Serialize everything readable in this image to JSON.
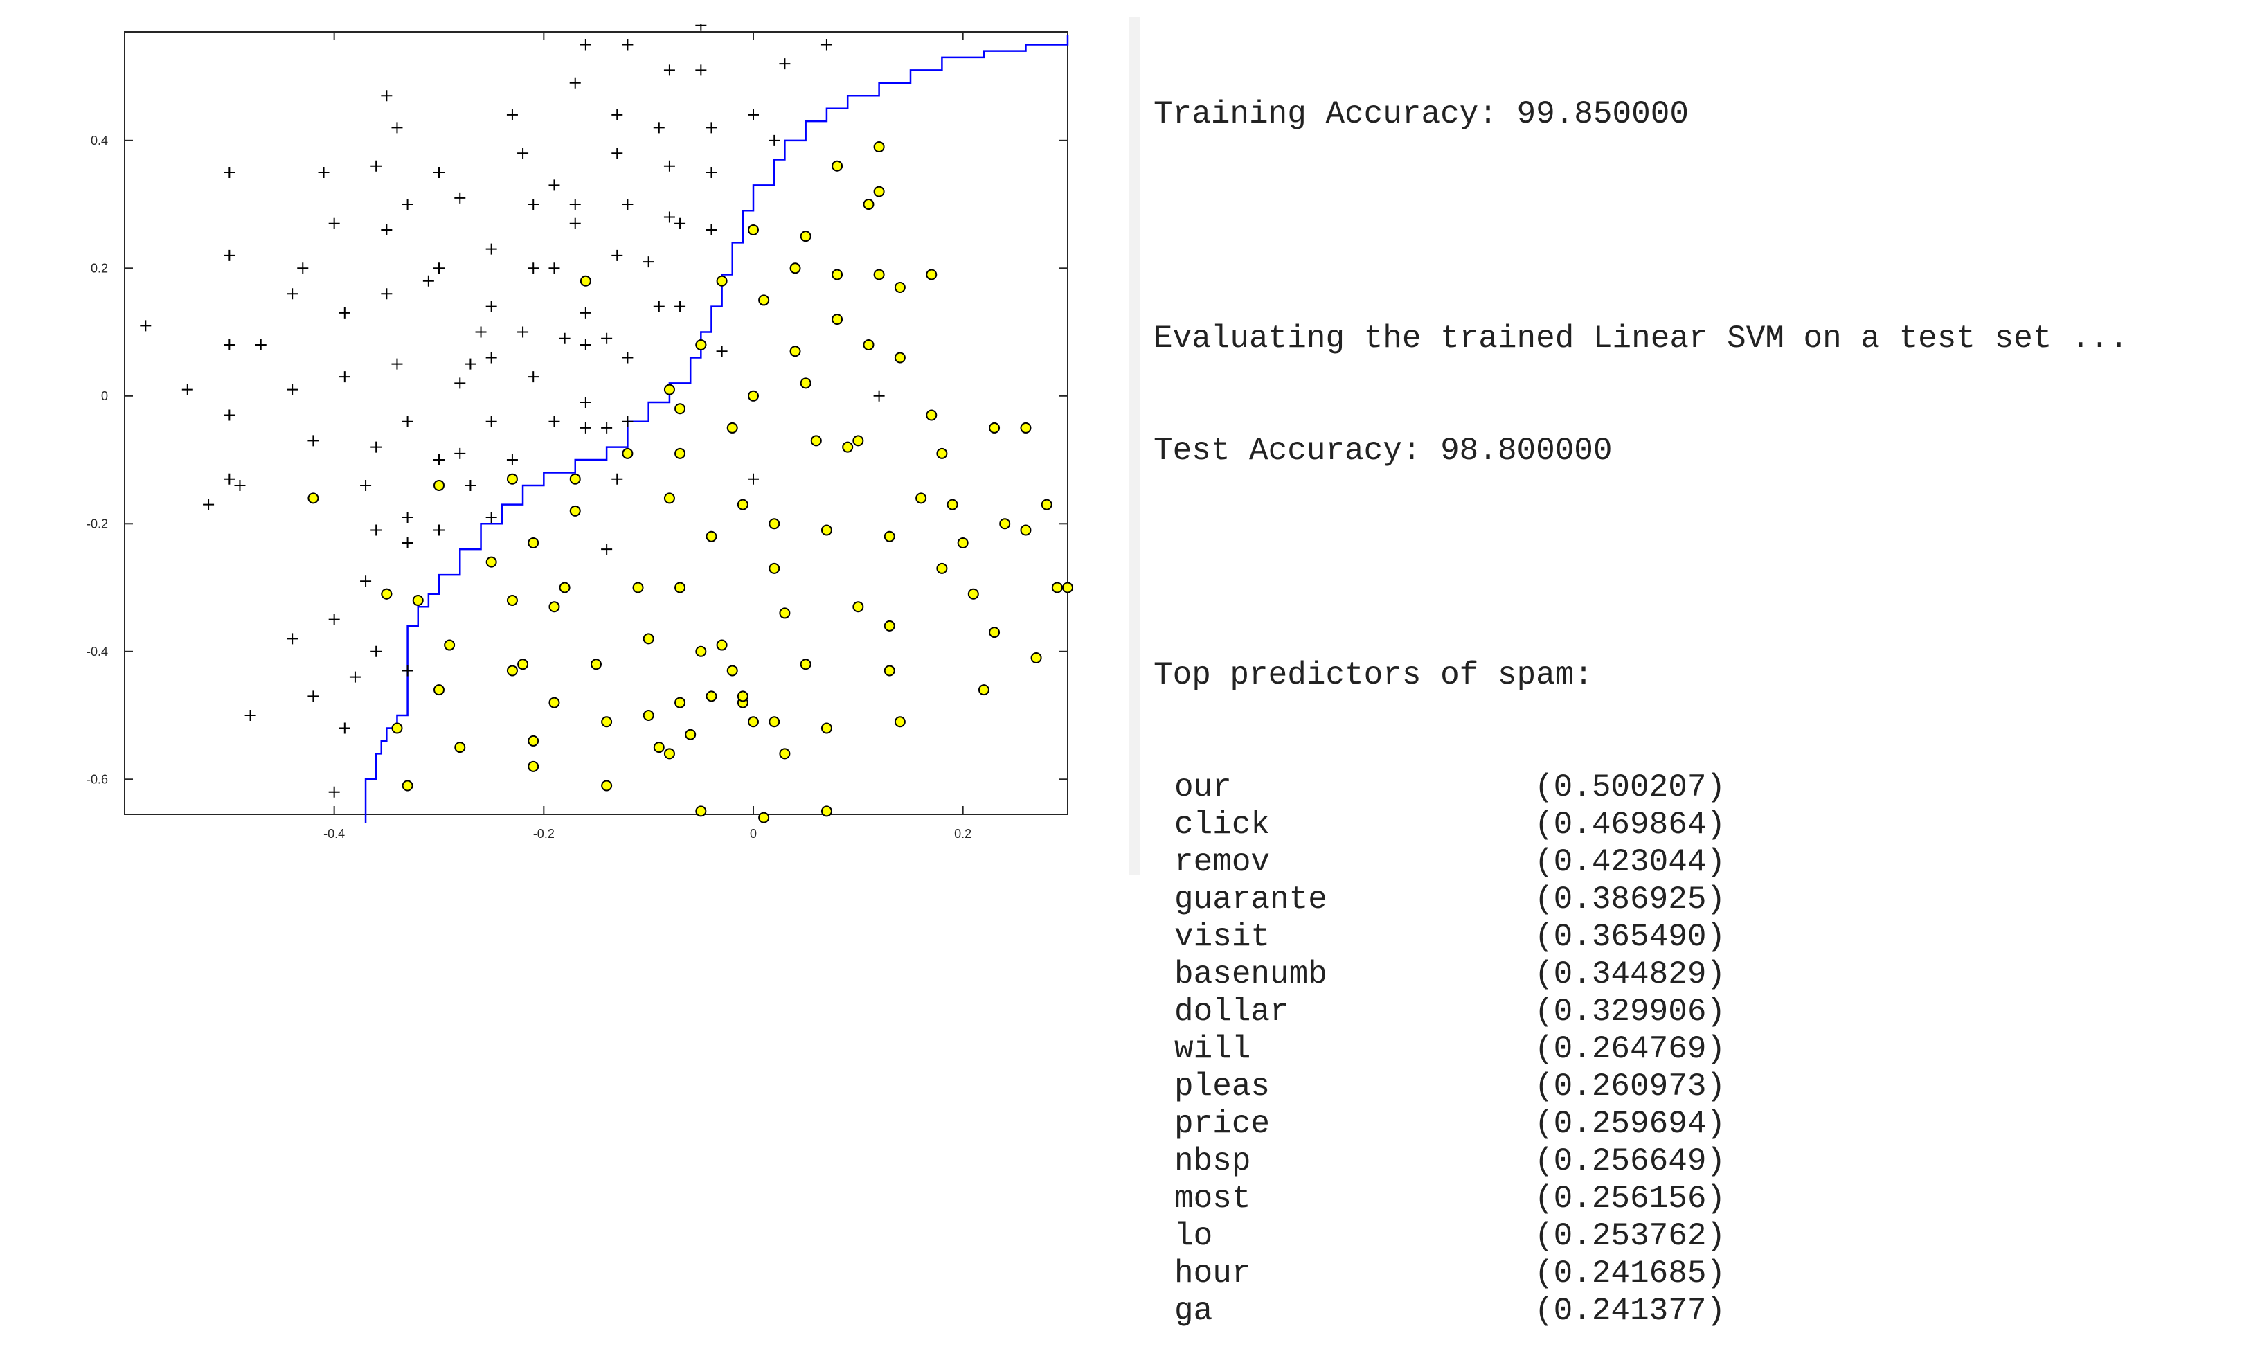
{
  "chart_data": {
    "type": "scatter",
    "title": "",
    "xlabel": "",
    "ylabel": "",
    "xlim": [
      -0.6,
      0.3
    ],
    "ylim": [
      -0.655,
      0.57
    ],
    "xticks": [
      -0.4,
      -0.2,
      0,
      0.2
    ],
    "xtick_labels": [
      "-0.4",
      "-0.2",
      "0",
      "0.2"
    ],
    "yticks": [
      0.4,
      0.2,
      0,
      -0.2,
      -0.4,
      -0.6
    ],
    "ytick_labels": [
      "0.4",
      "0.2",
      "0",
      "-0.2",
      "-0.4",
      "-0.6"
    ],
    "grid": false,
    "colors": {
      "negative": "#000000",
      "positive_fill": "#ffff00",
      "positive_edge": "#000000",
      "boundary": "#0000ff",
      "axes": "#262626"
    },
    "series": [
      {
        "marker": "plus",
        "points": [
          [
            -0.5,
            0.35
          ],
          [
            -0.41,
            0.35
          ],
          [
            -0.35,
            0.47
          ],
          [
            -0.34,
            0.42
          ],
          [
            -0.36,
            0.36
          ],
          [
            -0.3,
            0.35
          ],
          [
            -0.23,
            0.44
          ],
          [
            -0.22,
            0.38
          ],
          [
            -0.16,
            0.55
          ],
          [
            -0.12,
            0.55
          ],
          [
            -0.08,
            0.51
          ],
          [
            -0.05,
            0.58
          ],
          [
            -0.05,
            0.51
          ],
          [
            0.03,
            0.52
          ],
          [
            0.07,
            0.55
          ],
          [
            -0.17,
            0.49
          ],
          [
            -0.13,
            0.44
          ],
          [
            -0.09,
            0.42
          ],
          [
            -0.04,
            0.42
          ],
          [
            0.0,
            0.44
          ],
          [
            0.02,
            0.4
          ],
          [
            -0.13,
            0.38
          ],
          [
            -0.08,
            0.36
          ],
          [
            -0.04,
            0.35
          ],
          [
            -0.19,
            0.33
          ],
          [
            -0.21,
            0.3
          ],
          [
            -0.28,
            0.31
          ],
          [
            -0.33,
            0.3
          ],
          [
            -0.4,
            0.27
          ],
          [
            -0.35,
            0.26
          ],
          [
            -0.17,
            0.3
          ],
          [
            -0.17,
            0.27
          ],
          [
            -0.12,
            0.3
          ],
          [
            -0.08,
            0.28
          ],
          [
            -0.07,
            0.27
          ],
          [
            -0.04,
            0.26
          ],
          [
            -0.5,
            0.22
          ],
          [
            -0.43,
            0.2
          ],
          [
            -0.3,
            0.2
          ],
          [
            -0.31,
            0.18
          ],
          [
            -0.25,
            0.23
          ],
          [
            -0.21,
            0.2
          ],
          [
            -0.19,
            0.2
          ],
          [
            -0.13,
            0.22
          ],
          [
            -0.1,
            0.21
          ],
          [
            -0.44,
            0.16
          ],
          [
            -0.39,
            0.13
          ],
          [
            -0.35,
            0.16
          ],
          [
            -0.25,
            0.14
          ],
          [
            -0.16,
            0.13
          ],
          [
            -0.09,
            0.14
          ],
          [
            -0.07,
            0.14
          ],
          [
            -0.26,
            0.1
          ],
          [
            -0.22,
            0.1
          ],
          [
            -0.18,
            0.09
          ],
          [
            -0.16,
            0.08
          ],
          [
            -0.14,
            0.09
          ],
          [
            -0.12,
            0.06
          ],
          [
            -0.05,
            0.08
          ],
          [
            -0.03,
            0.07
          ],
          [
            -0.58,
            0.11
          ],
          [
            -0.5,
            0.08
          ],
          [
            -0.47,
            0.08
          ],
          [
            -0.34,
            0.05
          ],
          [
            -0.27,
            0.05
          ],
          [
            -0.25,
            0.06
          ],
          [
            -0.21,
            0.03
          ],
          [
            -0.54,
            0.01
          ],
          [
            -0.44,
            0.01
          ],
          [
            -0.39,
            0.03
          ],
          [
            -0.28,
            0.02
          ],
          [
            -0.16,
            -0.01
          ],
          [
            0.12,
            -0.0
          ],
          [
            -0.5,
            -0.03
          ],
          [
            -0.33,
            -0.04
          ],
          [
            -0.25,
            -0.04
          ],
          [
            -0.19,
            -0.04
          ],
          [
            -0.16,
            -0.05
          ],
          [
            -0.14,
            -0.05
          ],
          [
            -0.12,
            -0.04
          ],
          [
            -0.42,
            -0.07
          ],
          [
            -0.36,
            -0.08
          ],
          [
            -0.3,
            -0.1
          ],
          [
            -0.28,
            -0.09
          ],
          [
            -0.23,
            -0.1
          ],
          [
            -0.5,
            -0.13
          ],
          [
            -0.49,
            -0.14
          ],
          [
            -0.52,
            -0.17
          ],
          [
            -0.37,
            -0.14
          ],
          [
            -0.27,
            -0.14
          ],
          [
            -0.13,
            -0.13
          ],
          [
            0.0,
            -0.13
          ],
          [
            -0.33,
            -0.19
          ],
          [
            -0.3,
            -0.21
          ],
          [
            -0.25,
            -0.19
          ],
          [
            -0.36,
            -0.21
          ],
          [
            -0.33,
            -0.23
          ],
          [
            -0.14,
            -0.24
          ],
          [
            -0.37,
            -0.29
          ],
          [
            -0.35,
            -0.31
          ],
          [
            -0.44,
            -0.38
          ],
          [
            -0.4,
            -0.35
          ],
          [
            -0.36,
            -0.4
          ],
          [
            -0.38,
            -0.44
          ],
          [
            -0.42,
            -0.47
          ],
          [
            -0.39,
            -0.52
          ],
          [
            -0.48,
            -0.5
          ],
          [
            -0.33,
            -0.43
          ],
          [
            -0.4,
            -0.62
          ]
        ]
      },
      {
        "marker": "circle",
        "points": [
          [
            -0.35,
            -0.31
          ],
          [
            -0.32,
            -0.32
          ],
          [
            -0.34,
            -0.52
          ],
          [
            -0.33,
            -0.61
          ],
          [
            -0.42,
            -0.16
          ],
          [
            -0.3,
            -0.14
          ],
          [
            -0.23,
            -0.13
          ],
          [
            -0.17,
            -0.13
          ],
          [
            -0.17,
            -0.18
          ],
          [
            -0.25,
            -0.26
          ],
          [
            -0.21,
            -0.23
          ],
          [
            -0.23,
            -0.32
          ],
          [
            -0.18,
            -0.3
          ],
          [
            -0.19,
            -0.33
          ],
          [
            -0.29,
            -0.39
          ],
          [
            -0.3,
            -0.46
          ],
          [
            -0.28,
            -0.55
          ],
          [
            -0.23,
            -0.43
          ],
          [
            -0.22,
            -0.42
          ],
          [
            -0.21,
            -0.54
          ],
          [
            -0.21,
            -0.58
          ],
          [
            -0.19,
            -0.48
          ],
          [
            -0.15,
            -0.42
          ],
          [
            -0.14,
            -0.51
          ],
          [
            -0.14,
            -0.61
          ],
          [
            -0.11,
            -0.3
          ],
          [
            -0.1,
            -0.38
          ],
          [
            -0.1,
            -0.5
          ],
          [
            -0.09,
            -0.55
          ],
          [
            -0.08,
            -0.56
          ],
          [
            -0.07,
            -0.3
          ],
          [
            -0.07,
            -0.48
          ],
          [
            -0.06,
            -0.53
          ],
          [
            -0.05,
            -0.4
          ],
          [
            -0.04,
            -0.47
          ],
          [
            -0.03,
            -0.39
          ],
          [
            -0.02,
            -0.43
          ],
          [
            -0.01,
            -0.48
          ],
          [
            -0.01,
            -0.47
          ],
          [
            0.0,
            -0.51
          ],
          [
            0.02,
            -0.51
          ],
          [
            0.03,
            -0.56
          ],
          [
            0.01,
            -0.66
          ],
          [
            -0.05,
            -0.65
          ],
          [
            0.07,
            -0.65
          ],
          [
            0.07,
            -0.52
          ],
          [
            0.05,
            -0.42
          ],
          [
            0.03,
            -0.34
          ],
          [
            0.02,
            -0.27
          ],
          [
            -0.16,
            0.18
          ],
          [
            -0.12,
            -0.09
          ],
          [
            -0.08,
            0.01
          ],
          [
            -0.07,
            -0.02
          ],
          [
            -0.07,
            -0.09
          ],
          [
            -0.08,
            -0.16
          ],
          [
            -0.04,
            -0.22
          ],
          [
            -0.01,
            -0.17
          ],
          [
            -0.02,
            -0.05
          ],
          [
            0.02,
            -0.2
          ],
          [
            -0.05,
            0.08
          ],
          [
            -0.03,
            0.18
          ],
          [
            0.0,
            0.26
          ],
          [
            0.01,
            0.15
          ],
          [
            0.0,
            0.0
          ],
          [
            0.04,
            0.07
          ],
          [
            0.05,
            0.02
          ],
          [
            0.04,
            0.2
          ],
          [
            0.05,
            0.25
          ],
          [
            0.08,
            0.36
          ],
          [
            0.12,
            0.39
          ],
          [
            0.11,
            0.3
          ],
          [
            0.12,
            0.32
          ],
          [
            0.08,
            0.19
          ],
          [
            0.08,
            0.12
          ],
          [
            0.11,
            0.08
          ],
          [
            0.12,
            0.19
          ],
          [
            0.14,
            0.17
          ],
          [
            0.14,
            0.06
          ],
          [
            0.17,
            0.19
          ],
          [
            0.06,
            -0.07
          ],
          [
            0.09,
            -0.08
          ],
          [
            0.1,
            -0.07
          ],
          [
            0.07,
            -0.21
          ],
          [
            0.1,
            -0.33
          ],
          [
            0.13,
            -0.22
          ],
          [
            0.13,
            -0.36
          ],
          [
            0.13,
            -0.43
          ],
          [
            0.14,
            -0.51
          ],
          [
            0.16,
            -0.16
          ],
          [
            0.17,
            -0.03
          ],
          [
            0.18,
            -0.09
          ],
          [
            0.19,
            -0.17
          ],
          [
            0.2,
            -0.23
          ],
          [
            0.21,
            -0.31
          ],
          [
            0.18,
            -0.27
          ],
          [
            0.22,
            -0.46
          ],
          [
            0.23,
            -0.37
          ],
          [
            0.23,
            -0.05
          ],
          [
            0.26,
            -0.05
          ],
          [
            0.24,
            -0.2
          ],
          [
            0.26,
            -0.21
          ],
          [
            0.28,
            -0.17
          ],
          [
            0.29,
            -0.3
          ],
          [
            0.3,
            -0.3
          ],
          [
            0.27,
            -0.41
          ]
        ]
      }
    ],
    "decision_boundary": [
      [
        -0.37,
        -0.67
      ],
      [
        -0.37,
        -0.6
      ],
      [
        -0.36,
        -0.58
      ],
      [
        -0.36,
        -0.56
      ],
      [
        -0.355,
        -0.54
      ],
      [
        -0.35,
        -0.52
      ],
      [
        -0.34,
        -0.5
      ],
      [
        -0.33,
        -0.48
      ],
      [
        -0.33,
        -0.44
      ],
      [
        -0.33,
        -0.4
      ],
      [
        -0.33,
        -0.36
      ],
      [
        -0.32,
        -0.33
      ],
      [
        -0.31,
        -0.31
      ],
      [
        -0.3,
        -0.28
      ],
      [
        -0.28,
        -0.24
      ],
      [
        -0.26,
        -0.2
      ],
      [
        -0.24,
        -0.17
      ],
      [
        -0.22,
        -0.14
      ],
      [
        -0.2,
        -0.12
      ],
      [
        -0.17,
        -0.1
      ],
      [
        -0.14,
        -0.08
      ],
      [
        -0.12,
        -0.04
      ],
      [
        -0.1,
        -0.01
      ],
      [
        -0.08,
        0.02
      ],
      [
        -0.06,
        0.06
      ],
      [
        -0.05,
        0.1
      ],
      [
        -0.04,
        0.14
      ],
      [
        -0.03,
        0.19
      ],
      [
        -0.02,
        0.24
      ],
      [
        -0.01,
        0.29
      ],
      [
        0.0,
        0.33
      ],
      [
        0.02,
        0.37
      ],
      [
        0.03,
        0.4
      ],
      [
        0.05,
        0.43
      ],
      [
        0.07,
        0.45
      ],
      [
        0.09,
        0.47
      ],
      [
        0.12,
        0.49
      ],
      [
        0.15,
        0.51
      ],
      [
        0.18,
        0.53
      ],
      [
        0.22,
        0.54
      ],
      [
        0.26,
        0.55
      ],
      [
        0.3,
        0.565
      ]
    ]
  },
  "console": {
    "training_accuracy": "Training Accuracy: 99.850000",
    "evaluating": "Evaluating the trained Linear SVM on a test set ...",
    "test_accuracy": "Test Accuracy: 98.800000",
    "predictors_header": "Top predictors of spam:",
    "predictors": [
      {
        "word": "our",
        "weight": "(0.500207)"
      },
      {
        "word": "click",
        "weight": "(0.469864)"
      },
      {
        "word": "remov",
        "weight": "(0.423044)"
      },
      {
        "word": "guarante",
        "weight": "(0.386925)"
      },
      {
        "word": "visit",
        "weight": "(0.365490)"
      },
      {
        "word": "basenumb",
        "weight": "(0.344829)"
      },
      {
        "word": "dollar",
        "weight": "(0.329906)"
      },
      {
        "word": "will",
        "weight": "(0.264769)"
      },
      {
        "word": "pleas",
        "weight": "(0.260973)"
      },
      {
        "word": "price",
        "weight": "(0.259694)"
      },
      {
        "word": "nbsp",
        "weight": "(0.256649)"
      },
      {
        "word": "most",
        "weight": "(0.256156)"
      },
      {
        "word": "lo",
        "weight": "(0.253762)"
      },
      {
        "word": "hour",
        "weight": "(0.241685)"
      },
      {
        "word": "ga",
        "weight": "(0.241377)"
      }
    ]
  }
}
